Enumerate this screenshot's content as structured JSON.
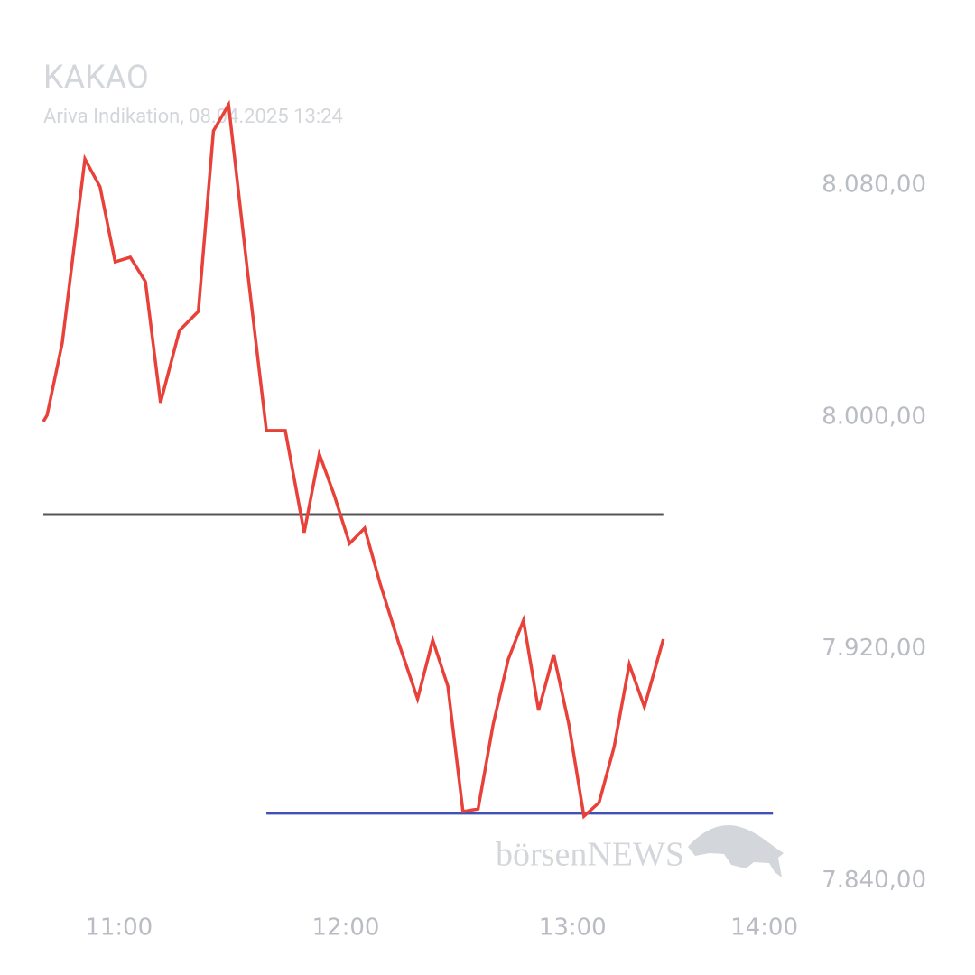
{
  "chart_data": {
    "type": "line",
    "title": "KAKAO",
    "subtitle": "Ariva Indikation, 08.04.2025 13:24",
    "watermark": "börsenNEWS",
    "x": [
      "10:40",
      "10:41",
      "10:45",
      "10:51",
      "10:55",
      "10:59",
      "11:03",
      "11:07",
      "11:11",
      "11:16",
      "11:21",
      "11:25",
      "11:29",
      "11:34",
      "11:39",
      "11:44",
      "11:49",
      "11:53",
      "11:57",
      "12:01",
      "12:05",
      "12:09",
      "12:14",
      "12:19",
      "12:23",
      "12:27",
      "12:31",
      "12:35",
      "12:39",
      "12:43",
      "12:47",
      "12:51",
      "12:55",
      "12:59",
      "13:03",
      "13:07",
      "13:11",
      "13:15",
      "13:19",
      "13:24"
    ],
    "series": [
      {
        "name": "KAKAO",
        "color": "#e8413a",
        "values": [
          7998.4,
          8000.6,
          8025.5,
          8089.0,
          8079.4,
          8053.5,
          8055.1,
          8046.7,
          8004.9,
          8029.8,
          8036.4,
          8098.7,
          8107.7,
          8050.4,
          7995.3,
          7995.3,
          7960.1,
          7987.2,
          7972.8,
          7956.3,
          7961.6,
          7942.9,
          7922.0,
          7902.7,
          7923.0,
          7907.1,
          7863.8,
          7864.7,
          7894.0,
          7916.4,
          7929.8,
          7898.7,
          7918.0,
          7894.0,
          7862.2,
          7866.9,
          7886.2,
          7914.6,
          7899.9,
          7923.3
        ]
      }
    ],
    "reference_lines": [
      {
        "value": 7966.3,
        "color": "#555555",
        "x_range": [
          "10:40",
          "13:24"
        ]
      },
      {
        "value": 7863.2,
        "color": "#3f51b5",
        "x_range": [
          "11:39",
          "13:53"
        ]
      }
    ],
    "xlim": [
      "10:40",
      "14:00"
    ],
    "xticks": [
      "11:00",
      "12:00",
      "13:00",
      "14:00"
    ],
    "ylim": [
      7830,
      8110
    ],
    "yticks": [
      {
        "value": 7840,
        "label": "7.840,00"
      },
      {
        "value": 7920,
        "label": "7.920,00"
      },
      {
        "value": 8000,
        "label": "8.000,00"
      },
      {
        "value": 8080,
        "label": "8.080,00"
      }
    ]
  }
}
